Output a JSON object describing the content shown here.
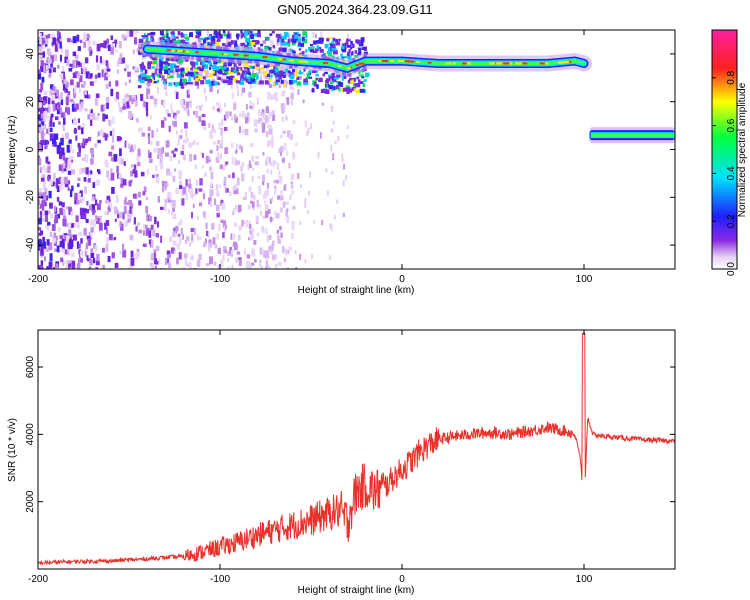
{
  "title": "GN05.2024.364.23.09.G11",
  "chart_data": [
    {
      "type": "heatmap",
      "xlabel": "Height of straight line (km)",
      "ylabel": "Frequency (Hz)",
      "xlim": [
        -200,
        150
      ],
      "ylim": [
        -50,
        50
      ],
      "xticks": [
        -200,
        -100,
        0,
        100
      ],
      "yticks": [
        -40,
        -20,
        0,
        20,
        40
      ],
      "colorbar": {
        "label": "Normalized spectral amplitude",
        "range": [
          0,
          1
        ],
        "ticks": [
          "0.0",
          "0.2",
          "0.4",
          "0.6",
          "0.8"
        ],
        "colormap": "rainbow (white-violet-blue-cyan-green-yellow-red-magenta)"
      },
      "features": [
        {
          "name": "dense signal track",
          "x": [
            -140,
            -120,
            -100,
            -80,
            -60,
            -40,
            -30,
            -20,
            0,
            20,
            50,
            80,
            95,
            100
          ],
          "y": [
            42,
            41,
            40,
            39,
            37,
            36,
            34,
            37,
            37,
            36,
            36,
            36,
            37,
            36
          ]
        },
        {
          "name": "low-frequency band",
          "x": [
            103,
            150
          ],
          "y": [
            6,
            6
          ]
        }
      ]
    },
    {
      "type": "line",
      "xlabel": "Height of straight line (km)",
      "ylabel": "SNR (10 * v/v)",
      "xlim": [
        -200,
        150
      ],
      "ylim": [
        0,
        7100
      ],
      "xticks": [
        -200,
        -100,
        0,
        100
      ],
      "yticks": [
        2000,
        4000,
        6000
      ],
      "color": "#e8312a",
      "x": [
        -200,
        -180,
        -160,
        -140,
        -120,
        -110,
        -100,
        -90,
        -80,
        -70,
        -60,
        -50,
        -45,
        -40,
        -35,
        -30,
        -28,
        -25,
        -20,
        -15,
        -10,
        -5,
        0,
        5,
        10,
        15,
        20,
        30,
        40,
        50,
        60,
        70,
        80,
        90,
        95,
        98,
        100,
        102,
        105,
        110,
        120,
        130,
        140,
        150
      ],
      "y": [
        180,
        220,
        240,
        300,
        380,
        500,
        650,
        800,
        1000,
        1150,
        1300,
        1450,
        1550,
        1650,
        1750,
        1400,
        1800,
        2300,
        2500,
        2300,
        2400,
        2700,
        2950,
        3200,
        3500,
        3700,
        3850,
        3950,
        4020,
        4050,
        4000,
        4100,
        4200,
        4100,
        4000,
        3300,
        1700,
        4500,
        4000,
        3950,
        3900,
        3850,
        3820,
        3800
      ]
    }
  ]
}
